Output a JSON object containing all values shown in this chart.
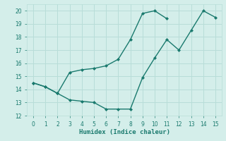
{
  "xlabel": "Humidex (Indice chaleur)",
  "xlim": [
    -0.5,
    15.5
  ],
  "ylim": [
    12,
    20.5
  ],
  "yticks": [
    12,
    13,
    14,
    15,
    16,
    17,
    18,
    19,
    20
  ],
  "xticks": [
    0,
    1,
    2,
    3,
    4,
    5,
    6,
    7,
    8,
    9,
    10,
    11,
    12,
    13,
    14,
    15
  ],
  "series1_x": [
    0,
    1,
    2,
    3,
    4,
    5,
    6,
    7,
    8,
    9,
    10,
    11,
    12,
    13,
    14,
    15
  ],
  "series1_y": [
    14.5,
    14.2,
    13.7,
    13.2,
    13.1,
    13.0,
    12.5,
    12.5,
    12.5,
    14.9,
    16.4,
    17.8,
    17.0,
    18.5,
    20.0,
    19.5
  ],
  "series2_x": [
    0,
    1,
    2,
    3,
    4,
    5,
    6,
    7,
    8,
    9,
    10,
    11,
    12,
    13,
    14,
    15
  ],
  "series2_y": [
    14.5,
    14.2,
    13.7,
    15.3,
    15.5,
    15.6,
    15.8,
    16.3,
    17.8,
    19.8,
    20.0,
    19.4,
    null,
    null,
    null,
    null
  ],
  "line_color": "#1a7a6e",
  "bg_color": "#d4eeea",
  "grid_color": "#b8ddd8",
  "label_color": "#1a7a6e",
  "marker": "D",
  "marker_size": 2.0,
  "linewidth": 1.0
}
